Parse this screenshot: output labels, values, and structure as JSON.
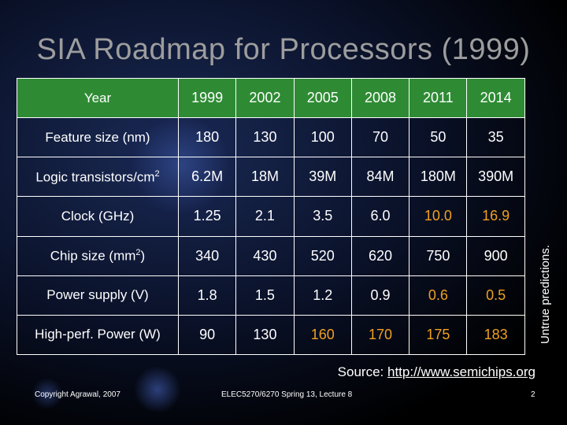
{
  "title": "SIA Roadmap for Processors (1999)",
  "side_note": "Untrue predictions.",
  "source": {
    "prefix": "Source:",
    "link": "http://www.semichips.org"
  },
  "footer": {
    "left": "Copyright Agrawal, 2007",
    "center": "ELEC5270/6270 Spring 13, Lecture 8",
    "right": "2"
  },
  "warning_color": "#f0a020",
  "header_color": "#2e8b34",
  "table": {
    "header": {
      "label": "Year",
      "values": [
        "1999",
        "2002",
        "2005",
        "2008",
        "2011",
        "2014"
      ]
    },
    "rows": [
      {
        "label": "Feature size (nm)",
        "values": [
          "180",
          "130",
          "100",
          "70",
          "50",
          "35"
        ],
        "warn": []
      },
      {
        "label": "Logic transistors/cm",
        "sup": "2",
        "values": [
          "6.2M",
          "18M",
          "39M",
          "84M",
          "180M",
          "390M"
        ],
        "warn": []
      },
      {
        "label": "Clock (GHz)",
        "values": [
          "1.25",
          "2.1",
          "3.5",
          "6.0",
          "10.0",
          "16.9"
        ],
        "warn": [
          4,
          5
        ]
      },
      {
        "label": "Chip size (mm",
        "sup": "2",
        "suffix": ")",
        "values": [
          "340",
          "430",
          "520",
          "620",
          "750",
          "900"
        ],
        "warn": []
      },
      {
        "label": "Power supply (V)",
        "values": [
          "1.8",
          "1.5",
          "1.2",
          "0.9",
          "0.6",
          "0.5"
        ],
        "warn": [
          4,
          5
        ]
      },
      {
        "label": "High-perf. Power (W)",
        "values": [
          "90",
          "130",
          "160",
          "170",
          "175",
          "183"
        ],
        "warn": [
          2,
          3,
          4,
          5
        ]
      }
    ]
  }
}
